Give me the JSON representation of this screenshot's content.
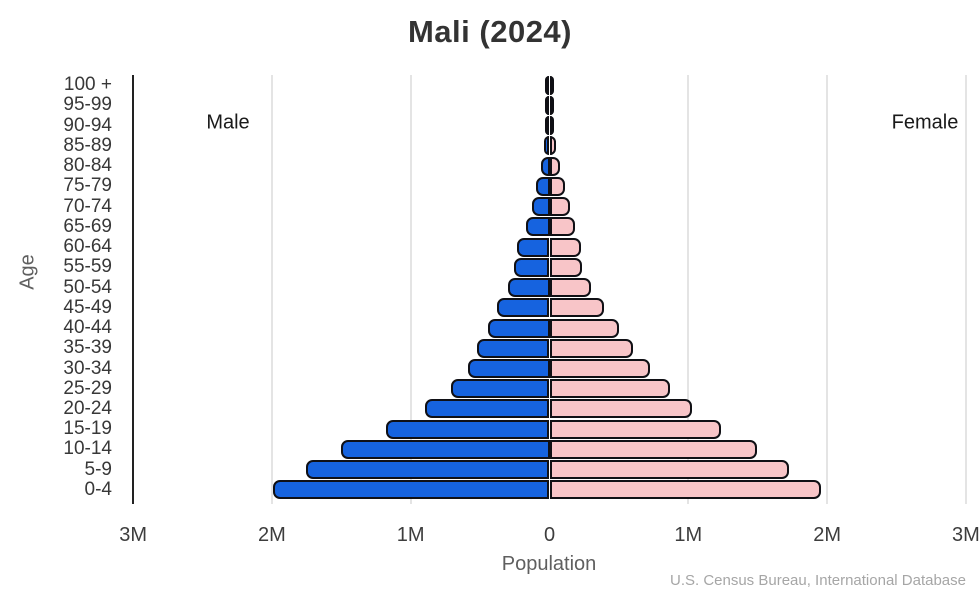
{
  "title": "Mali (2024)",
  "labels": {
    "male": "Male",
    "female": "Female",
    "x_axis": "Population",
    "y_axis": "Age",
    "source": "U.S. Census Bureau, International Database"
  },
  "colors": {
    "male_fill": "#1663DF",
    "female_fill": "#F8C5C8",
    "bar_border": "#101015",
    "gridline": "#E4E4E4",
    "axis_line": "#222222"
  },
  "chart_data": {
    "type": "bar",
    "subtype": "population_pyramid",
    "title": "Mali (2024)",
    "xlabel": "Population",
    "ylabel": "Age",
    "legend_position": "inside-top",
    "grid": true,
    "xlim_millions": [
      -3,
      3
    ],
    "x_ticks": [
      {
        "label": "3M",
        "value": -3
      },
      {
        "label": "2M",
        "value": -2
      },
      {
        "label": "1M",
        "value": -1
      },
      {
        "label": "0",
        "value": 0
      },
      {
        "label": "1M",
        "value": 1
      },
      {
        "label": "2M",
        "value": 2
      },
      {
        "label": "3M",
        "value": 3
      }
    ],
    "categories": [
      "100 +",
      "95-99",
      "90-94",
      "85-89",
      "80-84",
      "75-79",
      "70-74",
      "65-69",
      "60-64",
      "55-59",
      "50-54",
      "45-49",
      "40-44",
      "35-39",
      "30-34",
      "25-29",
      "20-24",
      "15-19",
      "10-14",
      "5-9",
      "0-4"
    ],
    "series": [
      {
        "name": "Male",
        "side": "left",
        "color": "#1663DF",
        "values_millions": [
          0.001,
          0.002,
          0.004,
          0.012,
          0.036,
          0.072,
          0.101,
          0.144,
          0.204,
          0.229,
          0.274,
          0.347,
          0.414,
          0.493,
          0.558,
          0.679,
          0.871,
          1.148,
          1.473,
          1.726,
          1.962
        ]
      },
      {
        "name": "Female",
        "side": "right",
        "color": "#F8C5C8",
        "values_millions": [
          0.001,
          0.002,
          0.005,
          0.016,
          0.043,
          0.079,
          0.116,
          0.152,
          0.2,
          0.207,
          0.267,
          0.363,
          0.469,
          0.573,
          0.693,
          0.838,
          0.994,
          1.206,
          1.464,
          1.699,
          1.928
        ]
      }
    ]
  }
}
